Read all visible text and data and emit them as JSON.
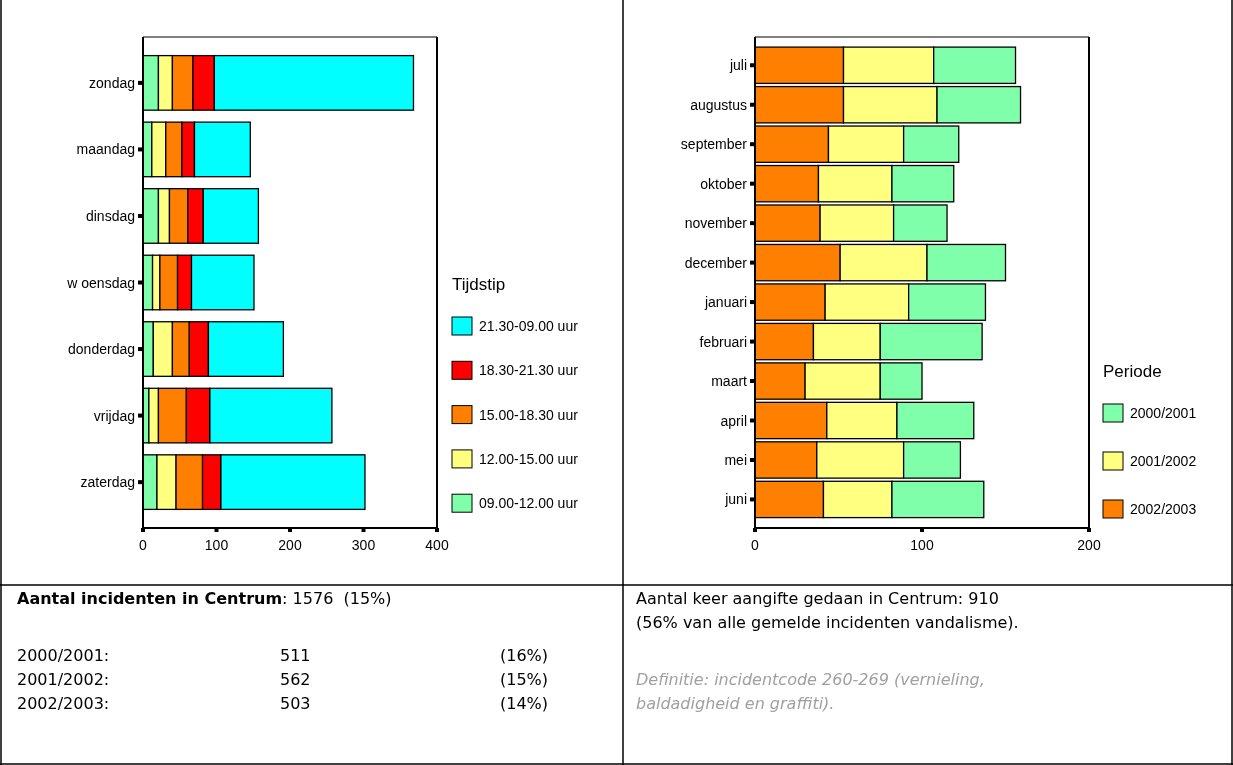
{
  "chart_data": [
    {
      "type": "bar",
      "orientation": "horizontal",
      "stacked": true,
      "legend": "right",
      "legend_title": "Tijdstip",
      "categories": [
        "zondag",
        "maandag",
        "dinsdag",
        "w oensdag",
        "donderdag",
        "vrijdag",
        "zaterdag"
      ],
      "series": [
        {
          "name": "09.00-12.00 uur",
          "color": "#80ffaa",
          "values": [
            21,
            12,
            21,
            13,
            14,
            8,
            19
          ]
        },
        {
          "name": "12.00-15.00 uur",
          "color": "#ffff80",
          "values": [
            19,
            19,
            15,
            10,
            26,
            13,
            26
          ]
        },
        {
          "name": "15.00-18.30 uur",
          "color": "#ff8000",
          "values": [
            28,
            22,
            25,
            24,
            23,
            38,
            36
          ]
        },
        {
          "name": "18.30-21.30 uur",
          "color": "#ff0000",
          "values": [
            29,
            17,
            21,
            19,
            26,
            32,
            25
          ]
        },
        {
          "name": "21.30-09.00 uur",
          "color": "#00ffff",
          "values": [
            271,
            76,
            75,
            85,
            102,
            166,
            196
          ]
        }
      ],
      "xlim": [
        0,
        400
      ],
      "xticks": [
        0,
        100,
        200,
        300,
        400
      ]
    },
    {
      "type": "bar",
      "orientation": "horizontal",
      "stacked": true,
      "legend": "right",
      "legend_title": "Periode",
      "categories": [
        "juli",
        "augustus",
        "september",
        "oktober",
        "november",
        "december",
        "januari",
        "februari",
        "maart",
        "april",
        "mei",
        "juni"
      ],
      "series": [
        {
          "name": "2002/2003",
          "color": "#ff8000",
          "values": [
            53,
            53,
            44,
            38,
            39,
            51,
            42,
            35,
            30,
            43,
            37,
            41
          ]
        },
        {
          "name": "2001/2002",
          "color": "#ffff80",
          "values": [
            54,
            56,
            45,
            44,
            44,
            52,
            50,
            40,
            45,
            42,
            52,
            41
          ]
        },
        {
          "name": "2000/2001",
          "color": "#80ffaa",
          "values": [
            49,
            50,
            33,
            37,
            32,
            47,
            46,
            61,
            25,
            46,
            34,
            55
          ]
        }
      ],
      "xlim": [
        0,
        200
      ],
      "xticks": [
        0,
        100,
        200
      ]
    },
    {
      "type": "other",
      "title": "Aantal incidenten in Centrum",
      "annotations": [
        ": 1576  (15%)",
        "2000/2001:",
        "511",
        "(16%)",
        "2001/2002:",
        "562",
        "(15%)",
        "2002/2003:",
        "503",
        "(14%)"
      ]
    },
    {
      "type": "other",
      "annotations": [
        "Aantal keer aangifte gedaan in Centrum: 910",
        "(56% van alle gemelde incidenten vandalisme).",
        "Definitie: incidentcode 260-269 (vernieling,",
        "baldadigheid en graffiti)."
      ]
    }
  ]
}
